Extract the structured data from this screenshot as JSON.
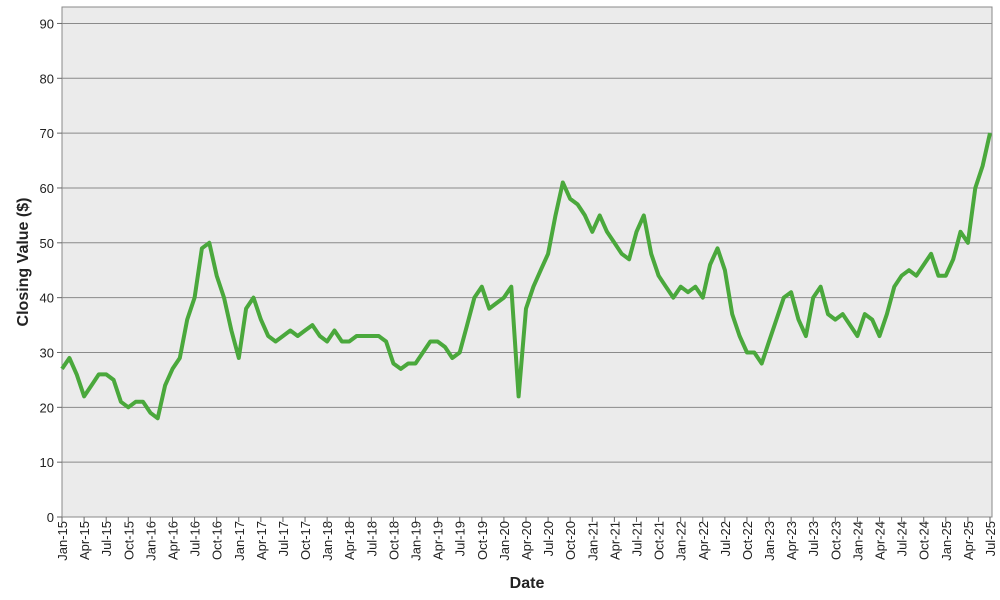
{
  "chart_data": {
    "type": "line",
    "x_label": "Date",
    "y_label": "Closing Value ($)",
    "categories": [
      "Jan-15",
      null,
      null,
      "Apr-15",
      null,
      null,
      "Jul-15",
      null,
      null,
      "Oct-15",
      null,
      null,
      "Jan-16",
      null,
      null,
      "Apr-16",
      null,
      null,
      "Jul-16",
      null,
      null,
      "Oct-16",
      null,
      null,
      "Jan-17",
      null,
      null,
      "Apr-17",
      null,
      null,
      "Jul-17",
      null,
      null,
      "Oct-17",
      null,
      null,
      "Jan-18",
      null,
      null,
      "Apr-18",
      null,
      null,
      "Jul-18",
      null,
      null,
      "Oct-18",
      null,
      null,
      "Jan-19",
      null,
      null,
      "Apr-19",
      null,
      null,
      "Jul-19",
      null,
      null,
      "Oct-19",
      null,
      null,
      "Jan-20",
      null,
      null,
      "Apr-20",
      null,
      null,
      "Jul-20",
      null,
      null,
      "Oct-20",
      null,
      null,
      "Jan-21",
      null,
      null,
      "Apr-21",
      null,
      null,
      "Jul-21",
      null,
      null,
      "Oct-21",
      null,
      null,
      "Jan-22",
      null,
      null,
      "Apr-22",
      null,
      null,
      "Jul-22",
      null,
      null,
      "Oct-22",
      null,
      null,
      "Jan-23",
      null,
      null,
      "Apr-23",
      null,
      null,
      "Jul-23",
      null,
      null,
      "Oct-23",
      null,
      null,
      "Jan-24",
      null,
      null,
      "Apr-24",
      null,
      null,
      "Jul-24",
      null,
      null,
      "Oct-24",
      null,
      null,
      "Jan-25",
      null,
      null,
      "Apr-25",
      null,
      null,
      "Jul-25"
    ],
    "values": [
      27,
      29,
      26,
      22,
      24,
      26,
      26,
      25,
      21,
      20,
      21,
      21,
      19,
      18,
      24,
      27,
      29,
      36,
      40,
      49,
      50,
      44,
      40,
      34,
      29,
      38,
      40,
      36,
      33,
      32,
      33,
      34,
      33,
      34,
      35,
      33,
      32,
      34,
      32,
      32,
      33,
      33,
      33,
      33,
      32,
      28,
      27,
      28,
      28,
      30,
      32,
      32,
      31,
      29,
      30,
      35,
      40,
      42,
      38,
      39,
      40,
      42,
      22,
      38,
      42,
      45,
      48,
      55,
      61,
      58,
      57,
      55,
      52,
      55,
      52,
      50,
      48,
      47,
      52,
      55,
      48,
      44,
      42,
      40,
      42,
      41,
      42,
      40,
      46,
      49,
      45,
      37,
      33,
      30,
      30,
      28,
      32,
      36,
      40,
      41,
      36,
      33,
      40,
      42,
      37,
      36,
      37,
      35,
      33,
      37,
      36,
      33,
      37,
      42,
      44,
      45,
      44,
      46,
      48,
      44,
      44,
      47,
      52,
      50,
      60,
      64,
      70
    ],
    "color": "#4aa83c",
    "ylim": [
      0,
      93
    ],
    "yticks": [
      0,
      10,
      20,
      30,
      40,
      50,
      60,
      70,
      80,
      90
    ],
    "grid": true
  }
}
